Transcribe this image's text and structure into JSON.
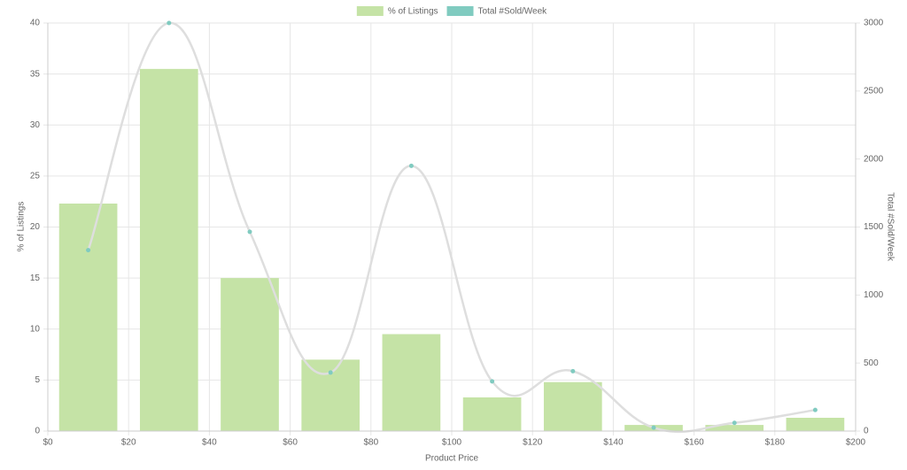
{
  "chart_data": {
    "type": "bar-line",
    "x_label": "Product Price",
    "y_label": "% of Listings",
    "y2_label": "Total #Sold/Week",
    "x": [
      10,
      30,
      50,
      70,
      90,
      110,
      130,
      150,
      170,
      190
    ],
    "bar_width": 14.4,
    "series": [
      {
        "name": "% of Listings",
        "type": "bar",
        "color": "#c5e3a6",
        "values": [
          22.3,
          35.5,
          15,
          7,
          9.5,
          3.3,
          4.8,
          0.6,
          0.6,
          1.3
        ]
      },
      {
        "name": "Total #Sold/Week",
        "type": "line",
        "axis": "y2",
        "color": "#80cbc0",
        "values": [
          1330,
          3000,
          1465,
          430,
          1950,
          365,
          440,
          25,
          60,
          155
        ]
      }
    ],
    "xlim": [
      0,
      200
    ],
    "xticks": [
      {
        "value": 0,
        "label": "$0"
      },
      {
        "value": 20,
        "label": "$20"
      },
      {
        "value": 40,
        "label": "$40"
      },
      {
        "value": 60,
        "label": "$60"
      },
      {
        "value": 80,
        "label": "$80"
      },
      {
        "value": 100,
        "label": "$100"
      },
      {
        "value": 120,
        "label": "$120"
      },
      {
        "value": 140,
        "label": "$140"
      },
      {
        "value": 160,
        "label": "$160"
      },
      {
        "value": 180,
        "label": "$180"
      },
      {
        "value": 200,
        "label": "$200"
      }
    ],
    "ylim": [
      0,
      40
    ],
    "yticks": [
      0,
      5,
      10,
      15,
      20,
      25,
      30,
      35,
      40
    ],
    "y2lim": [
      0,
      3000
    ],
    "y2ticks": [
      0,
      500,
      1000,
      1500,
      2000,
      2500,
      3000
    ],
    "grid": true,
    "legend": "top"
  }
}
